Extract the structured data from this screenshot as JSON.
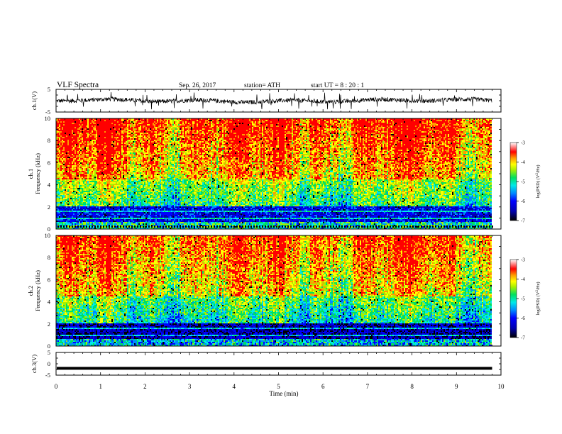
{
  "header": {
    "title": "VLF  Spectra",
    "date": "Sep. 26, 2017",
    "station": "station= ATH",
    "start": "start  UT  =   8  : 20 : 1"
  },
  "chart_data": [
    {
      "type": "line",
      "panel": "ch1-waveform",
      "ylabel": "ch.1(V)",
      "ylim": [
        -5,
        5
      ],
      "yticks": [
        "5",
        "-5"
      ],
      "xlim": [
        0,
        10
      ],
      "baseline": 0,
      "amplitude_typical": 1.2,
      "spike_peak": 3.8
    },
    {
      "type": "heatmap",
      "panel": "ch1-spectrogram",
      "ylabel": "ch.1\nFrequency  (kHz)",
      "ylim": [
        0,
        10
      ],
      "yticks": [
        "0",
        "2",
        "4",
        "6",
        "8",
        "10"
      ],
      "xlim": [
        0,
        10
      ],
      "colorbar": {
        "label": "log(PSD) (V²/Hz)",
        "range": [
          -7,
          -3
        ],
        "ticks": [
          "-3",
          "-4",
          "-5",
          "-6",
          "-7"
        ]
      }
    },
    {
      "type": "heatmap",
      "panel": "ch2-spectrogram",
      "ylabel": "ch.2\nFrequency  (kHz)",
      "ylim": [
        0,
        10
      ],
      "yticks": [
        "0",
        "2",
        "4",
        "6",
        "8",
        "10"
      ],
      "xlim": [
        0,
        10
      ],
      "colorbar": {
        "label": "log(PSD) (V²/Hz)",
        "range": [
          -7,
          -3
        ],
        "ticks": [
          "-3",
          "-4",
          "-5",
          "-6",
          "-7"
        ]
      }
    },
    {
      "type": "line",
      "panel": "ch3-waveform",
      "ylabel": "ch.3(V)",
      "ylim": [
        -5,
        5
      ],
      "yticks": [
        "5",
        "0",
        "-5"
      ],
      "xlim": [
        0,
        10
      ],
      "baseline": -2,
      "amplitude_typical": 0.15
    }
  ],
  "x_axis": {
    "label": "Time  (min)",
    "range": [
      0,
      10
    ],
    "ticks": [
      "0",
      "1",
      "2",
      "3",
      "4",
      "5",
      "6",
      "7",
      "8",
      "9",
      "10"
    ],
    "data_end": 9.8
  },
  "colors": {
    "colormap": [
      "#000000",
      "#0000b0",
      "#0000ff",
      "#0088ff",
      "#00e8e8",
      "#00e060",
      "#a8f000",
      "#ffff00",
      "#ff9a00",
      "#ff0000",
      "#ffffff"
    ],
    "trace": "#000000"
  }
}
